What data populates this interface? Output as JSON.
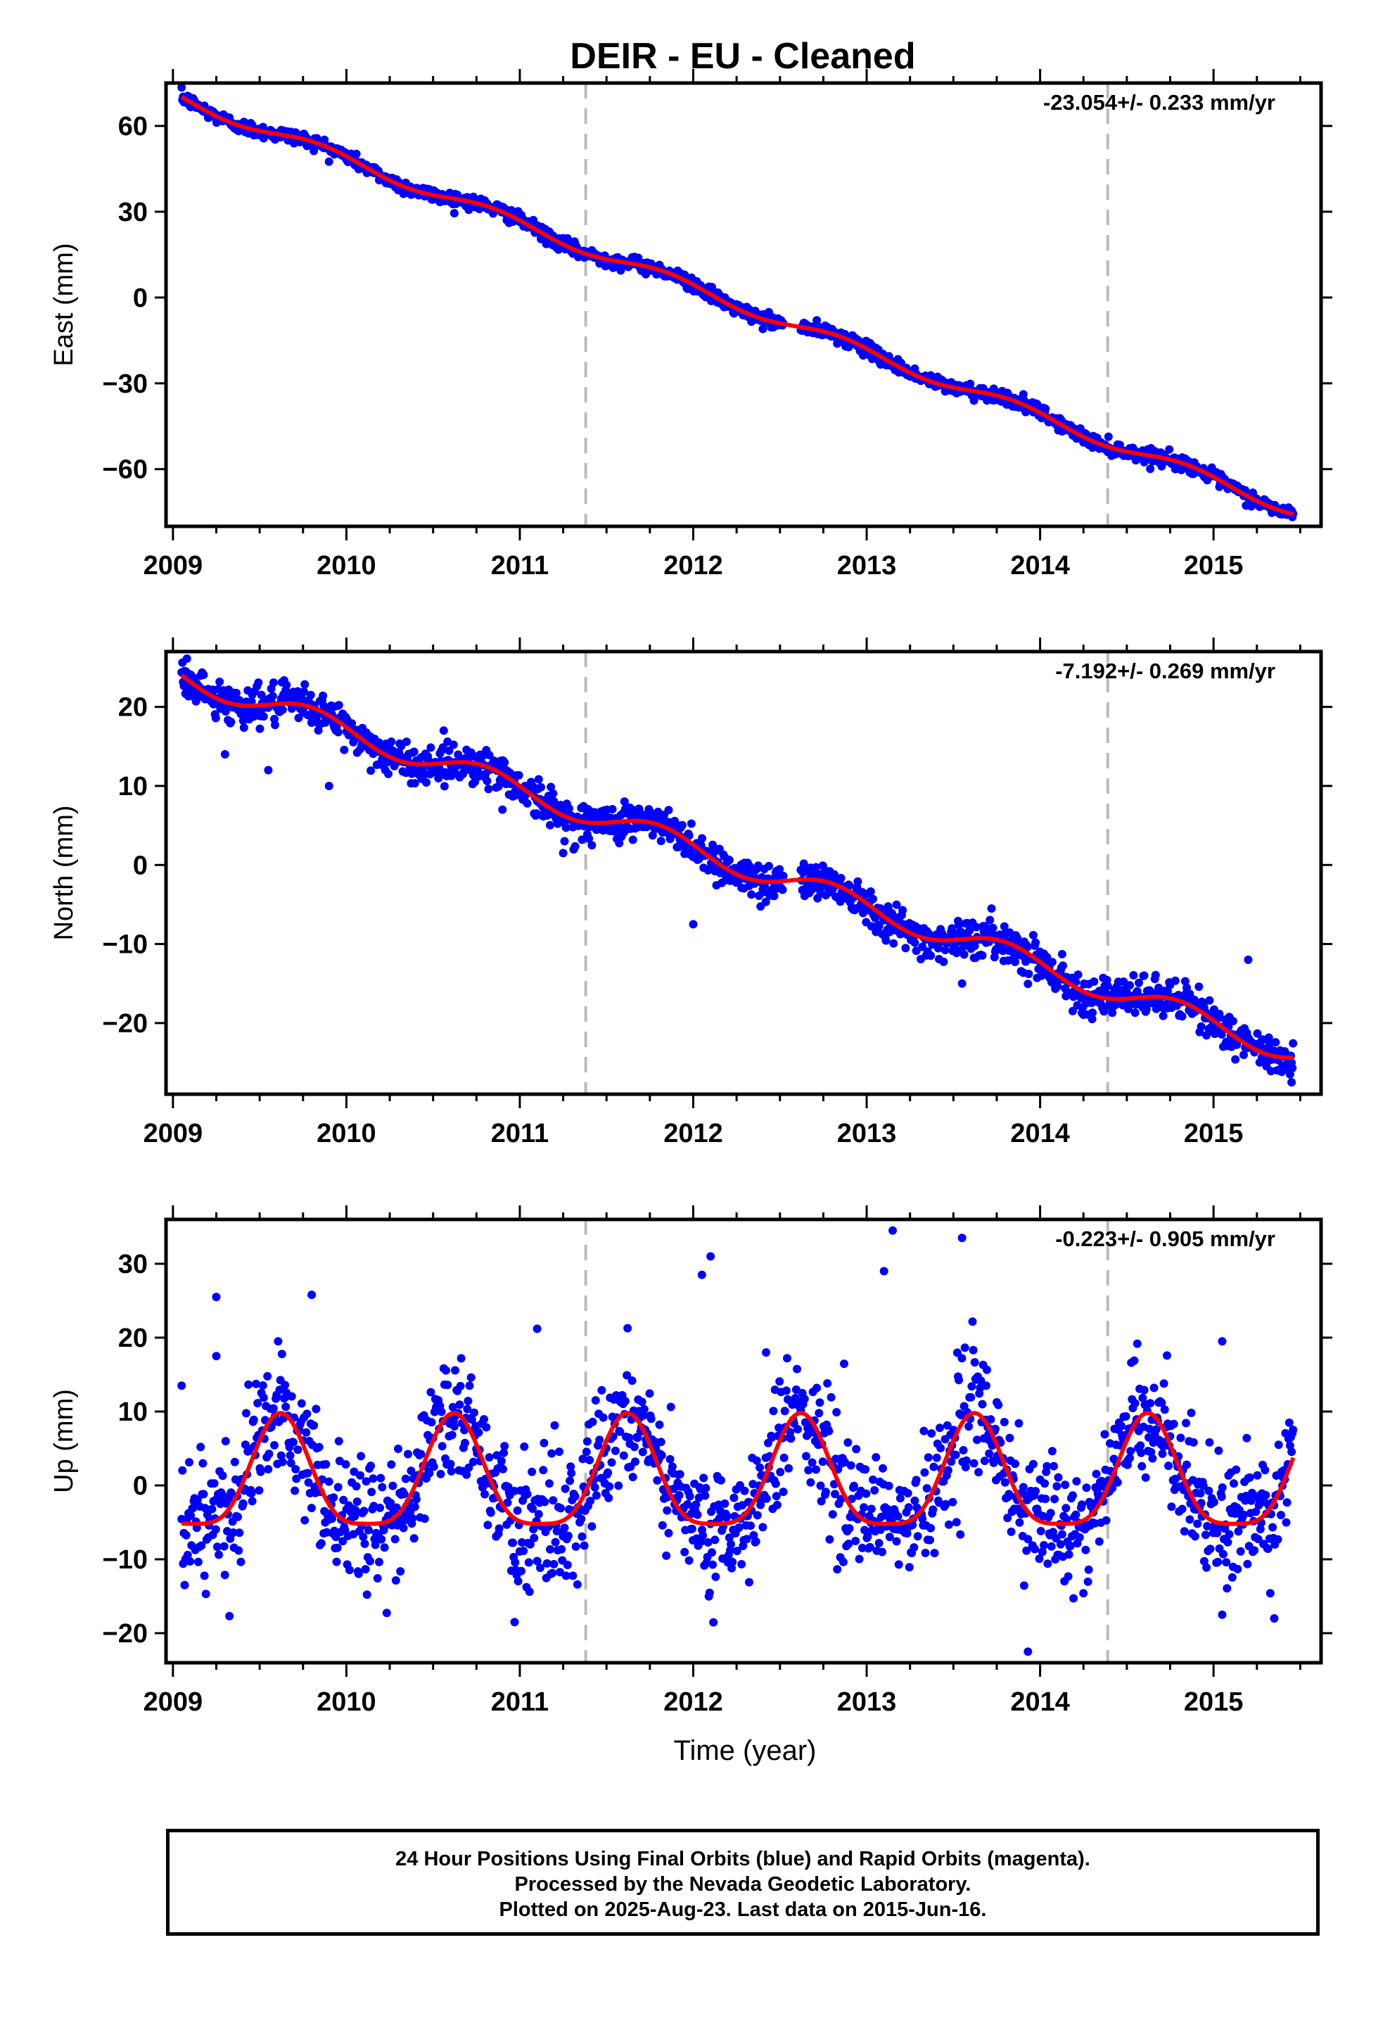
{
  "title": "DEIR  - EU - Cleaned",
  "footer": {
    "line1": "24 Hour Positions Using Final Orbits (blue) and Rapid Orbits (magenta).",
    "line2": "Processed by the Nevada Geodetic Laboratory.",
    "line3": "Plotted on 2025-Aug-23. Last data on 2015-Jun-16."
  },
  "colors": {
    "points": "#0000ff",
    "fit": "#ff0000",
    "breaks": "#bbbbbb",
    "axes": "#000000"
  },
  "chart_data": [
    {
      "type": "scatter",
      "ylabel": "East (mm)",
      "xlabel": "",
      "xlim": [
        2008.96,
        2015.62
      ],
      "ylim": [
        -80,
        75
      ],
      "yticks": [
        60,
        30,
        0,
        -30,
        -60
      ],
      "xticks": [
        2009,
        2010,
        2011,
        2012,
        2013,
        2014,
        2015
      ],
      "rate_label": "-23.054+/- 0.233 mm/yr",
      "breaks": [
        2011.38,
        2014.39
      ],
      "fit": {
        "start": [
          2009.05,
          69.5
        ],
        "end": [
          2015.45,
          -74
        ],
        "amplitude": 2.0,
        "phase": 0.6,
        "knee": 2012.5
      },
      "noise": 1.2,
      "outliers": []
    },
    {
      "type": "scatter",
      "ylabel": "North (mm)",
      "xlabel": "",
      "xlim": [
        2008.96,
        2015.62
      ],
      "ylim": [
        -29,
        27
      ],
      "yticks": [
        20,
        10,
        0,
        -10,
        -20
      ],
      "xticks": [
        2009,
        2010,
        2011,
        2012,
        2013,
        2014,
        2015
      ],
      "rate_label": "-7.192+/- 0.269 mm/yr",
      "breaks": [
        2011.38,
        2014.39
      ],
      "fit": {
        "start": [
          2009.05,
          24
        ],
        "end": [
          2015.45,
          -23.5
        ],
        "amplitude": 1.5,
        "phase": 0.55
      },
      "noise": 1.2,
      "outliers": [
        [
          2009.3,
          14.0
        ],
        [
          2009.55,
          12.0
        ],
        [
          2009.9,
          10.0
        ],
        [
          2010.9,
          7.0
        ],
        [
          2011.25,
          1.5
        ],
        [
          2012.0,
          -7.5
        ],
        [
          2013.55,
          -15.0
        ],
        [
          2014.3,
          -19.5
        ],
        [
          2014.6,
          -14.0
        ],
        [
          2015.2,
          -12.0
        ],
        [
          2015.45,
          -27.5
        ]
      ]
    },
    {
      "type": "scatter",
      "ylabel": "Up (mm)",
      "xlabel": "Time (year)",
      "xlim": [
        2008.96,
        2015.62
      ],
      "ylim": [
        -24,
        36
      ],
      "yticks": [
        30,
        20,
        10,
        0,
        -10,
        -20
      ],
      "xticks": [
        2009,
        2010,
        2011,
        2012,
        2013,
        2014,
        2015
      ],
      "rate_label": "-0.223+/- 0.905 mm/yr",
      "breaks": [
        2011.38,
        2014.39
      ],
      "fit": {
        "seasonal": true,
        "amplitude": 7.5,
        "peak": 2009.62,
        "offset": 2.5
      },
      "noise": 4.0,
      "outliers": [
        [
          2009.05,
          13.5
        ],
        [
          2009.25,
          25.5
        ],
        [
          2009.25,
          17.5
        ],
        [
          2009.8,
          25.8
        ],
        [
          2011.1,
          21.2
        ],
        [
          2010.97,
          -18.5
        ],
        [
          2012.05,
          28.5
        ],
        [
          2012.1,
          31.0
        ],
        [
          2012.42,
          18.0
        ],
        [
          2013.1,
          29.0
        ],
        [
          2013.15,
          34.5
        ],
        [
          2013.55,
          33.5
        ],
        [
          2013.93,
          -22.5
        ],
        [
          2015.05,
          19.5
        ],
        [
          2015.05,
          -17.5
        ],
        [
          2015.35,
          -18.0
        ]
      ]
    }
  ]
}
